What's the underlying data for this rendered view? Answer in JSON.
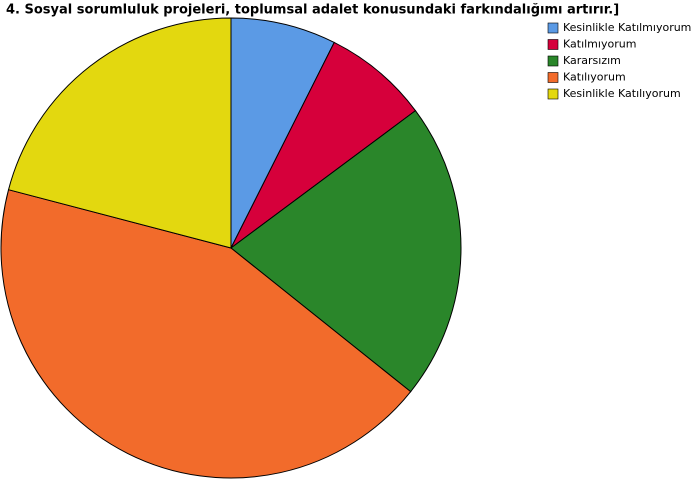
{
  "chart_data": {
    "type": "pie",
    "title": "4. Sosyal sorumluluk projeleri, toplumsal adalet konusundaki farkındalığımı artırır.]",
    "categories": [
      "Kesinlikle Katılmıyorum",
      "Katılmıyorum",
      "Kararsızım",
      "Katılıyorum",
      "Kesinlikle Katılıyorum"
    ],
    "values": [
      7.4,
      7.4,
      20.9,
      43.3,
      20.9
    ],
    "colors": [
      "#5b9ae5",
      "#d6003b",
      "#2a862a",
      "#f26b2b",
      "#e3d80f"
    ],
    "legend": "top-right"
  }
}
